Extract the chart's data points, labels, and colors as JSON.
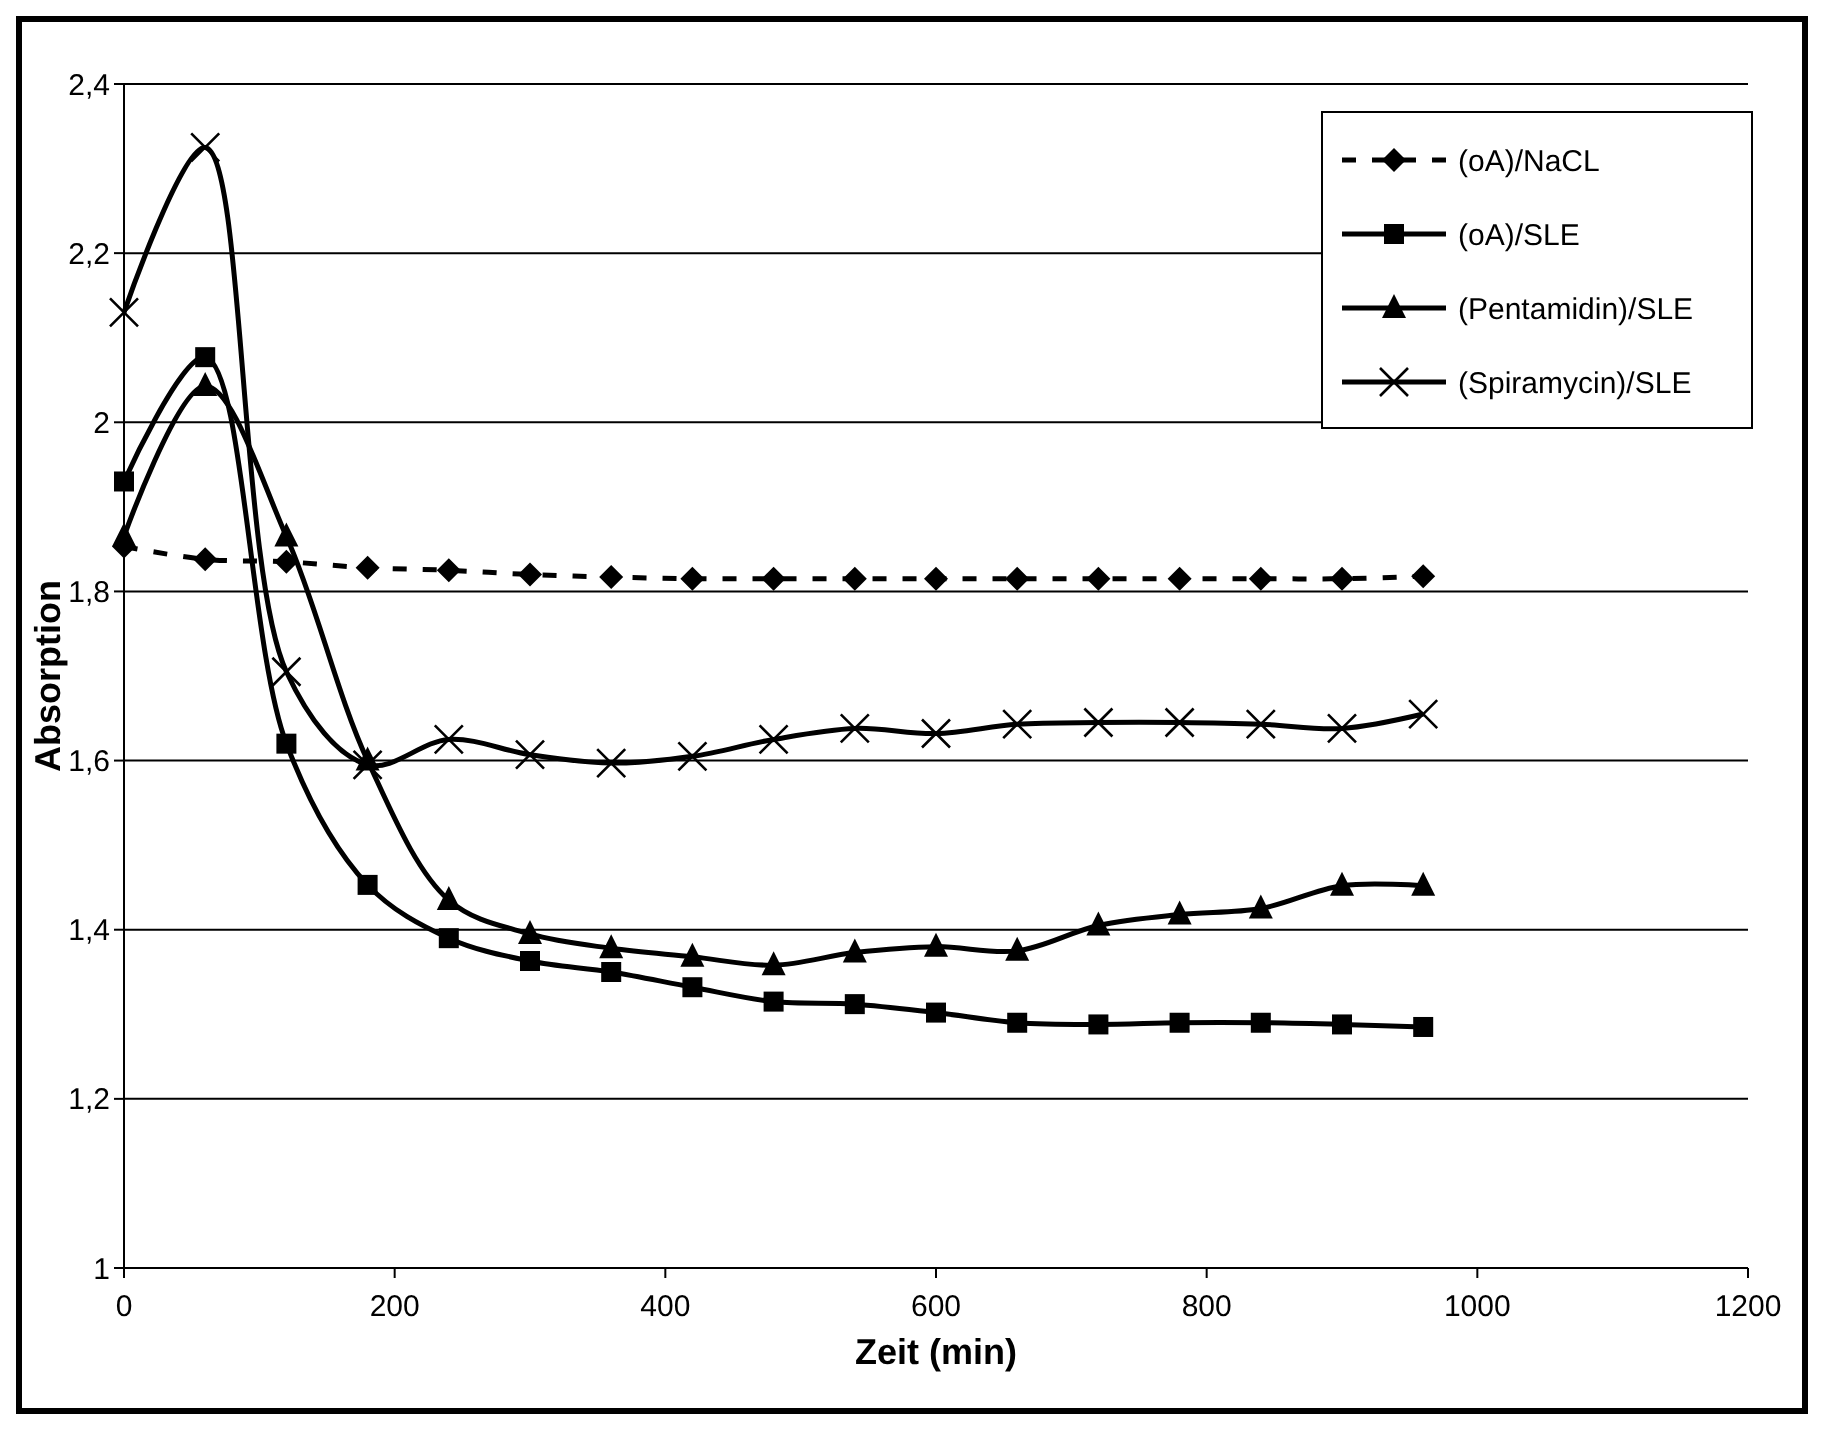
{
  "chart_data": {
    "type": "line",
    "xlabel": "Zeit (min)",
    "ylabel": "Absorption",
    "x": [
      0,
      60,
      120,
      180,
      240,
      300,
      360,
      420,
      480,
      540,
      600,
      660,
      720,
      780,
      840,
      900,
      960
    ],
    "series": [
      {
        "name": "(oA)/NaCL",
        "color": "#000000",
        "marker": "diamond",
        "line_style": "dashed",
        "values": [
          1.853,
          1.838,
          1.835,
          1.828,
          1.825,
          1.82,
          1.817,
          1.815,
          1.815,
          1.815,
          1.815,
          1.815,
          1.815,
          1.815,
          1.815,
          1.815,
          1.818
        ]
      },
      {
        "name": "(oA)/SLE",
        "color": "#000000",
        "marker": "square",
        "line_style": "solid",
        "values": [
          1.93,
          2.077,
          1.62,
          1.453,
          1.39,
          1.363,
          1.35,
          1.332,
          1.315,
          1.312,
          1.302,
          1.29,
          1.288,
          1.29,
          1.29,
          1.288,
          1.285
        ]
      },
      {
        "name": "(Pentamidin)/SLE",
        "color": "#000000",
        "marker": "triangle",
        "line_style": "solid",
        "values": [
          1.865,
          2.043,
          1.865,
          1.6,
          1.435,
          1.395,
          1.378,
          1.368,
          1.358,
          1.373,
          1.38,
          1.375,
          1.405,
          1.418,
          1.425,
          1.452,
          1.452
        ]
      },
      {
        "name": "(Spiramycin)/SLE",
        "color": "#000000",
        "marker": "cross",
        "line_style": "solid",
        "values": [
          2.13,
          2.325,
          1.705,
          1.595,
          1.625,
          1.607,
          1.597,
          1.605,
          1.625,
          1.638,
          1.632,
          1.643,
          1.645,
          1.645,
          1.643,
          1.638,
          1.655
        ]
      }
    ],
    "xlim": [
      0,
      1200
    ],
    "xticks": [
      0,
      200,
      400,
      600,
      800,
      1000,
      1200
    ],
    "ylim": [
      1,
      2.4
    ],
    "yticks": [
      {
        "value": 1,
        "label": "1"
      },
      {
        "value": 1.2,
        "label": "1,2"
      },
      {
        "value": 1.4,
        "label": "1,4"
      },
      {
        "value": 1.6,
        "label": "1,6"
      },
      {
        "value": 1.8,
        "label": "1,8"
      },
      {
        "value": 2,
        "label": "2"
      },
      {
        "value": 2.2,
        "label": "2,2"
      },
      {
        "value": 2.4,
        "label": "2,4"
      }
    ],
    "grid": "y",
    "legend": "top right"
  }
}
